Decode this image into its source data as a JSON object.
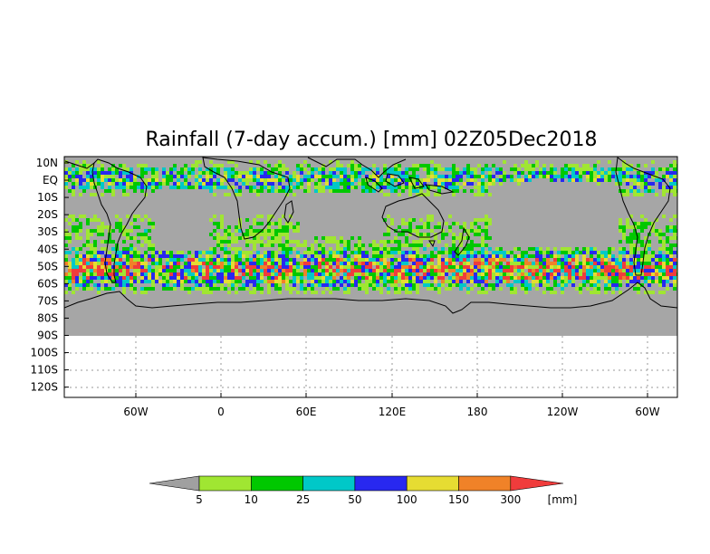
{
  "map": {
    "title": "Rainfall (7-day accum.) [mm] 02Z05Dec2018",
    "lat_labels": [
      "10N",
      "EQ",
      "10S",
      "20S",
      "30S",
      "40S",
      "50S",
      "60S",
      "70S",
      "80S",
      "90S",
      "100S",
      "110S",
      "120S"
    ],
    "lon_labels": [
      "60W",
      "0",
      "60E",
      "120E",
      "180",
      "120W",
      "60W"
    ],
    "colors": {
      "background_no_rain": "#a6a6a6",
      "land_outline": "#000000"
    }
  },
  "colorbar": {
    "unit": "[mm]",
    "labels": [
      "5",
      "10",
      "25",
      "50",
      "100",
      "150",
      "300"
    ],
    "colors": [
      "#a0a0a0",
      "#a0e632",
      "#00c800",
      "#00c8c8",
      "#2828f0",
      "#e6dc32",
      "#f08228",
      "#f03c3c"
    ]
  }
}
